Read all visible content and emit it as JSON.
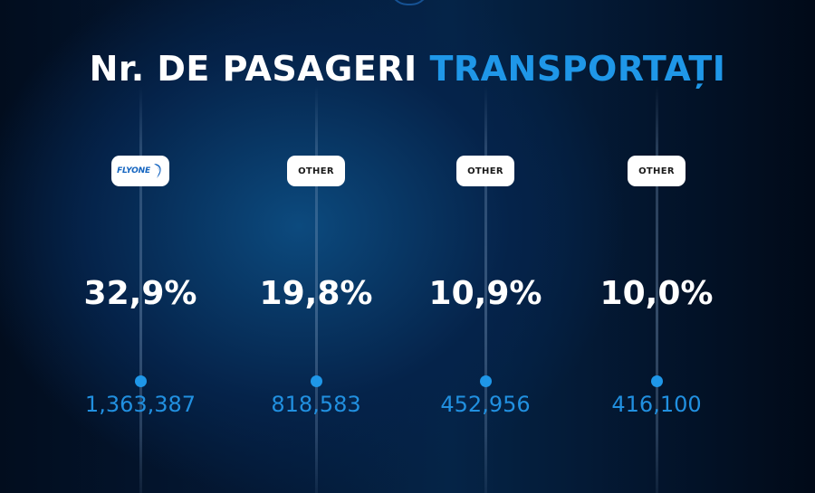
{
  "title": {
    "part1": "Nr. DE PASAGERI",
    "part2": "TRANSPORTAȚI"
  },
  "colors": {
    "accent": "#1f97e8",
    "number": "#2190e0",
    "background": "#041a38"
  },
  "columns": [
    {
      "logo": "FLYONE",
      "logo_type": "flyone-logo",
      "percent": "32,9%",
      "passengers": "1,363,387"
    },
    {
      "logo": "OTHER",
      "logo_type": "text-badge",
      "percent": "19,8%",
      "passengers": "818,583"
    },
    {
      "logo": "OTHER",
      "logo_type": "text-badge",
      "percent": "10,9%",
      "passengers": "452,956"
    },
    {
      "logo": "OTHER",
      "logo_type": "text-badge",
      "percent": "10,0%",
      "passengers": "416,100"
    }
  ]
}
